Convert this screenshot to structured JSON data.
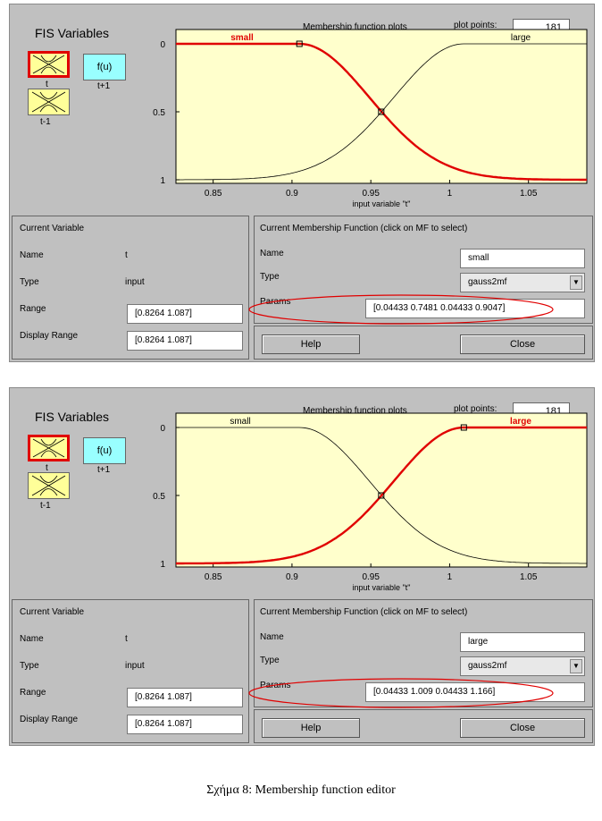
{
  "figure_caption": "Σχήμα 8: Membership function editor",
  "panels": [
    {
      "fis_title": "FIS Variables",
      "var_input_label": "t",
      "var_system_label": "f(u)",
      "var_system_sublabel": "t+1",
      "var_output_label": "t-1",
      "plot_title": "Membership function plots",
      "plot_points_label": "plot points:",
      "plot_points_value": "181",
      "y_ticks": [
        "1",
        "0.5",
        "0"
      ],
      "x_ticks": [
        "0.85",
        "0.9",
        "0.95",
        "1",
        "1.05"
      ],
      "xlabel": "input variable \"t\"",
      "mf_small_label": "small",
      "mf_large_label": "large",
      "selected_mf": "small",
      "current_variable_title": "Current Variable",
      "name_label": "Name",
      "name_value": "t",
      "type_label": "Type",
      "type_value": "input",
      "range_label": "Range",
      "range_value": "[0.8264 1.087]",
      "display_range_label": "Display Range",
      "display_range_value": "[0.8264 1.087]",
      "current_mf_title": "Current Membership Function (click on MF to select)",
      "mf_name_label": "Name",
      "mf_name_value": "small",
      "mf_type_label": "Type",
      "mf_type_value": "gauss2mf",
      "params_label": "Params",
      "params_value": "[0.04433 0.7481 0.04433 0.9047]",
      "help_label": "Help",
      "close_label": "Close"
    },
    {
      "fis_title": "FIS Variables",
      "var_input_label": "t",
      "var_system_label": "f(u)",
      "var_system_sublabel": "t+1",
      "var_output_label": "t-1",
      "plot_title": "Membership function plots",
      "plot_points_label": "plot points:",
      "plot_points_value": "181",
      "y_ticks": [
        "1",
        "0.5",
        "0"
      ],
      "x_ticks": [
        "0.85",
        "0.9",
        "0.95",
        "1",
        "1.05"
      ],
      "xlabel": "input variable \"t\"",
      "mf_small_label": "small",
      "mf_large_label": "large",
      "selected_mf": "large",
      "current_variable_title": "Current Variable",
      "name_label": "Name",
      "name_value": "t",
      "type_label": "Type",
      "type_value": "input",
      "range_label": "Range",
      "range_value": "[0.8264 1.087]",
      "display_range_label": "Display Range",
      "display_range_value": "[0.8264 1.087]",
      "current_mf_title": "Current Membership Function (click on MF to select)",
      "mf_name_label": "Name",
      "mf_name_value": "large",
      "mf_type_label": "Type",
      "mf_type_value": "gauss2mf",
      "params_label": "Params",
      "params_value": "[0.04433 1.009 0.04433 1.166]",
      "help_label": "Help",
      "close_label": "Close"
    }
  ],
  "chart_data": {
    "type": "line",
    "xlabel": "input variable \"t\"",
    "xlim": [
      0.8264,
      1.087
    ],
    "ylim": [
      0,
      1
    ],
    "x_ticks": [
      0.85,
      0.9,
      0.95,
      1,
      1.05
    ],
    "y_ticks": [
      0,
      0.5,
      1
    ],
    "series": [
      {
        "name": "small",
        "function": "gauss2mf",
        "params": [
          0.04433,
          0.7481,
          0.04433,
          0.9047
        ]
      },
      {
        "name": "large",
        "function": "gauss2mf",
        "params": [
          0.04433,
          1.009,
          0.04433,
          1.166
        ]
      }
    ]
  },
  "colors": {
    "panel_bg": "#c0c0c0",
    "plot_bg": "#ffffcc",
    "selected": "#e00000",
    "unselected": "#000000",
    "input_box": "#ffff99",
    "system_box": "#99ffff",
    "annotation": "#e00000"
  }
}
